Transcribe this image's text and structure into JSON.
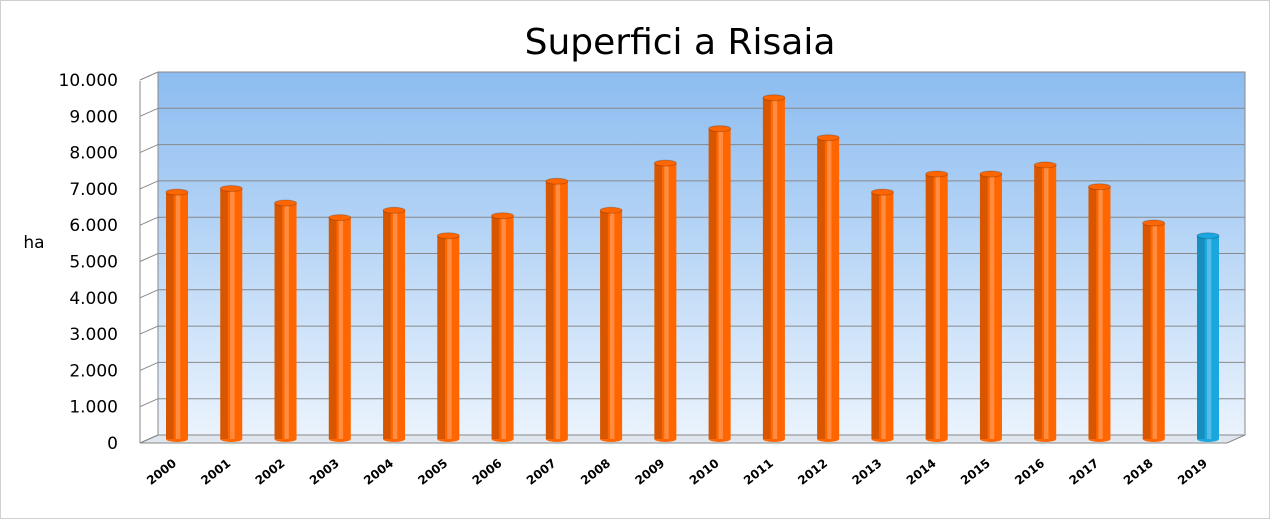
{
  "chart_data": {
    "type": "bar",
    "title": "Superfici a Risaia",
    "y_label": "ha",
    "categories": [
      "2000",
      "2001",
      "2002",
      "2003",
      "2004",
      "2005",
      "2006",
      "2007",
      "2008",
      "2009",
      "2010",
      "2011",
      "2012",
      "2013",
      "2014",
      "2015",
      "2016",
      "2017",
      "2018",
      "2019"
    ],
    "values": [
      6800,
      6900,
      6500,
      6100,
      6300,
      5600,
      6150,
      7100,
      6300,
      7600,
      8550,
      9400,
      8300,
      6800,
      7300,
      7300,
      7550,
      6950,
      5950,
      5600
    ],
    "colors": [
      "#ff6600",
      "#ff6600",
      "#ff6600",
      "#ff6600",
      "#ff6600",
      "#ff6600",
      "#ff6600",
      "#ff6600",
      "#ff6600",
      "#ff6600",
      "#ff6600",
      "#ff6600",
      "#ff6600",
      "#ff6600",
      "#ff6600",
      "#ff6600",
      "#ff6600",
      "#ff6600",
      "#ff6600",
      "#1aa7e0"
    ],
    "ylim": [
      0,
      10000
    ],
    "yticks": [
      0,
      {
        "value": 1000,
        "label": "1.000"
      },
      {
        "value": 2000,
        "label": "2.000"
      },
      {
        "value": 3000,
        "label": "3.000"
      },
      {
        "value": 4000,
        "label": "4.000"
      },
      {
        "value": 5000,
        "label": "5.000"
      },
      {
        "value": 6000,
        "label": "6.000"
      },
      {
        "value": 7000,
        "label": "7.000"
      },
      {
        "value": 8000,
        "label": "8.000"
      },
      {
        "value": 9000,
        "label": "9.000"
      },
      {
        "value": 10000,
        "label": "10.000"
      }
    ],
    "grid": true
  }
}
